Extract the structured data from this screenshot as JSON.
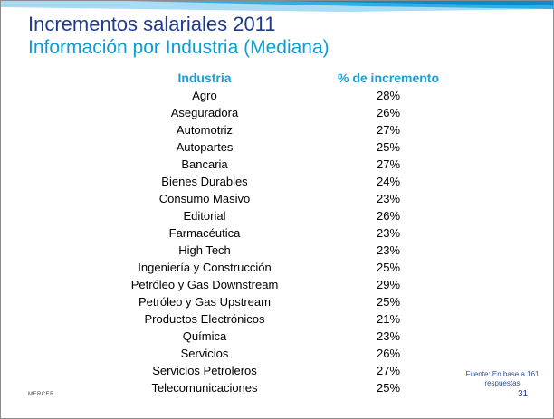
{
  "header": {
    "title": "Incrementos salariales 2011",
    "subtitle": "Información por Industria (Mediana)"
  },
  "table": {
    "columns": [
      "Industria",
      "% de incremento"
    ],
    "rows": [
      {
        "industry": "Agro",
        "value": "28%"
      },
      {
        "industry": "Aseguradora",
        "value": "26%"
      },
      {
        "industry": "Automotriz",
        "value": "27%"
      },
      {
        "industry": "Autopartes",
        "value": "25%"
      },
      {
        "industry": "Bancaria",
        "value": "27%"
      },
      {
        "industry": "Bienes Durables",
        "value": "24%"
      },
      {
        "industry": "Consumo Masivo",
        "value": "23%"
      },
      {
        "industry": "Editorial",
        "value": "26%"
      },
      {
        "industry": "Farmacéutica",
        "value": "23%"
      },
      {
        "industry": "High Tech",
        "value": "23%"
      },
      {
        "industry": "Ingeniería y Construcción",
        "value": "25%"
      },
      {
        "industry": "Petróleo y Gas Downstream",
        "value": "29%"
      },
      {
        "industry": "Petróleo y Gas Upstream",
        "value": "25%"
      },
      {
        "industry": "Productos Electrónicos",
        "value": "21%"
      },
      {
        "industry": "Química",
        "value": "23%"
      },
      {
        "industry": "Servicios",
        "value": "26%"
      },
      {
        "industry": "Servicios Petroleros",
        "value": "27%"
      },
      {
        "industry": "Telecomunicaciones",
        "value": "25%"
      }
    ]
  },
  "footer": {
    "logo_text": "MERCER",
    "source_line1": "Fuente: En base a 161",
    "source_line2": "respuestas",
    "page_number": "31"
  },
  "colors": {
    "title": "#1f3a8f",
    "subtitle": "#0f9bd4",
    "header_text": "#1aa0d6",
    "band_light": "#a9dcf3",
    "band_mid": "#33aee3",
    "band_dark": "#0a8ccc"
  }
}
